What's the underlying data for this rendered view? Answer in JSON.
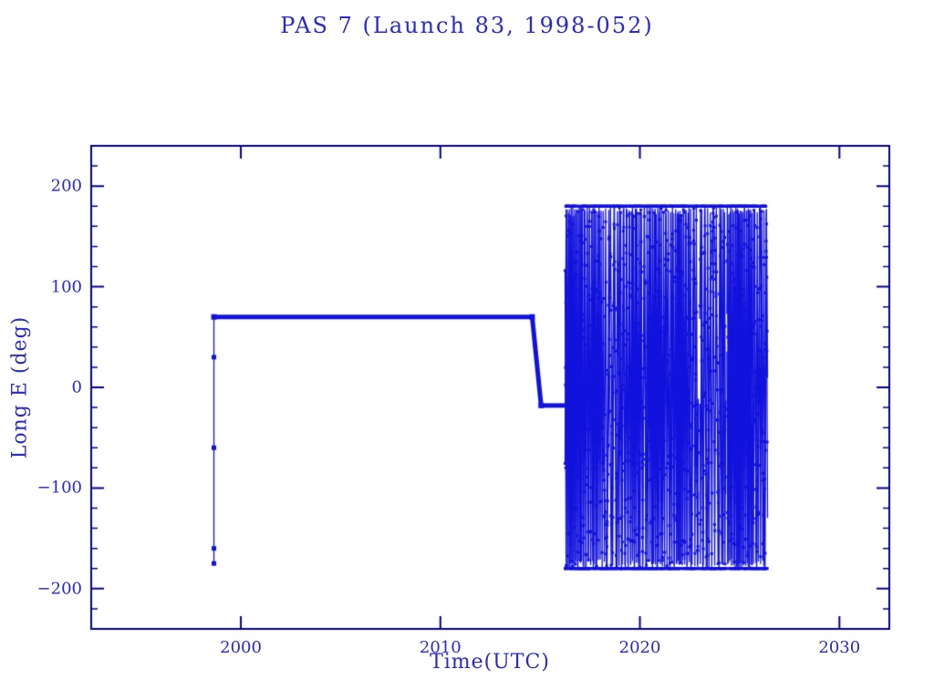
{
  "colors": {
    "background": "#ffffff",
    "frame": "#000090",
    "data": "#1212dd",
    "text": "#2a2ac8"
  },
  "chart_data": {
    "type": "line",
    "title": "PAS 7 (Launch 83, 1998-052)",
    "xlabel": "Time(UTC)",
    "ylabel": "Long E (deg)",
    "xlim": [
      1992.5,
      2032.5
    ],
    "ylim": [
      -240,
      240
    ],
    "x_ticks": [
      2000,
      2010,
      2020,
      2030
    ],
    "y_ticks": [
      -200,
      -100,
      0,
      100,
      200
    ],
    "x_minor_step": 2,
    "y_minor_step": 20,
    "grid": false,
    "legend": null,
    "series": [
      {
        "name": "launch-epoch-markers",
        "style": "markers",
        "points": [
          [
            1998.65,
            30
          ],
          [
            1998.65,
            -60
          ],
          [
            1998.65,
            -160
          ],
          [
            1998.65,
            -175
          ]
        ]
      },
      {
        "name": "launch-epoch-vertical",
        "style": "line-thin",
        "points": [
          [
            1998.65,
            -175
          ],
          [
            1998.65,
            70
          ]
        ]
      },
      {
        "name": "station-70E",
        "style": "line-thick",
        "points": [
          [
            1998.65,
            70
          ],
          [
            2014.6,
            70
          ]
        ]
      },
      {
        "name": "relocation-ramp",
        "style": "line-thick",
        "points": [
          [
            2014.6,
            70
          ],
          [
            2015.05,
            -18
          ]
        ]
      },
      {
        "name": "station-18W",
        "style": "line-thick",
        "points": [
          [
            2015.05,
            -18
          ],
          [
            2016.3,
            -18
          ]
        ]
      }
    ],
    "drift_band": {
      "description": "dense wrapped-longitude drift oscillation after end of station keeping",
      "x_start": 2016.25,
      "x_end": 2026.4,
      "y_min": -180,
      "y_max": 180,
      "gaps": [
        [
          2022.93,
          2023.0
        ],
        [
          2024.3,
          2024.36
        ]
      ]
    }
  }
}
